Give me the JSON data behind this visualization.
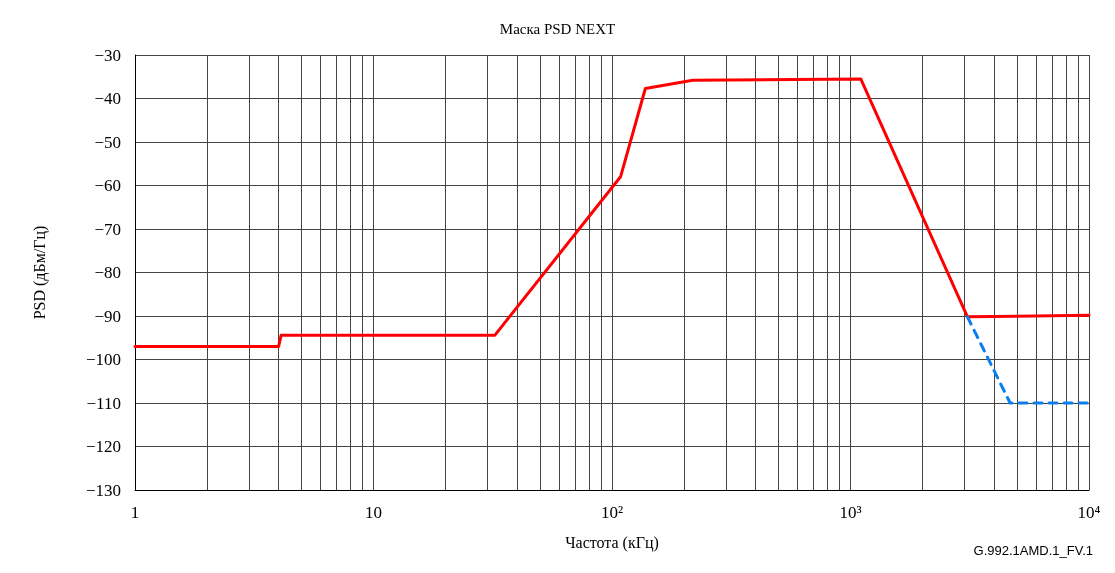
{
  "chart_data": {
    "type": "line",
    "title": "Маска PSD NEXT",
    "xlabel": "Частота (кГц)",
    "ylabel": "PSD (дБм/Гц)",
    "annotations": [
      "G.992.1AMD.1_FV.1"
    ],
    "log": "x",
    "grid": true,
    "marker": "none",
    "xlim": [
      1,
      10000
    ],
    "ylim": [
      -130,
      -30
    ],
    "xticks": [
      {
        "value": 1,
        "label": "1"
      },
      {
        "value": 2,
        "label": null
      },
      {
        "value": 3,
        "label": null
      },
      {
        "value": 4,
        "label": null
      },
      {
        "value": 5,
        "label": null
      },
      {
        "value": 6,
        "label": null
      },
      {
        "value": 7,
        "label": null
      },
      {
        "value": 8,
        "label": null
      },
      {
        "value": 9,
        "label": null
      },
      {
        "value": 10,
        "label": "10"
      },
      {
        "value": 20,
        "label": null
      },
      {
        "value": 30,
        "label": null
      },
      {
        "value": 40,
        "label": null
      },
      {
        "value": 50,
        "label": null
      },
      {
        "value": 60,
        "label": null
      },
      {
        "value": 70,
        "label": null
      },
      {
        "value": 80,
        "label": null
      },
      {
        "value": 90,
        "label": null
      },
      {
        "value": 100,
        "label": "10²"
      },
      {
        "value": 200,
        "label": null
      },
      {
        "value": 300,
        "label": null
      },
      {
        "value": 400,
        "label": null
      },
      {
        "value": 500,
        "label": null
      },
      {
        "value": 600,
        "label": null
      },
      {
        "value": 700,
        "label": null
      },
      {
        "value": 800,
        "label": null
      },
      {
        "value": 900,
        "label": null
      },
      {
        "value": 1000,
        "label": "10³"
      },
      {
        "value": 2000,
        "label": null
      },
      {
        "value": 3000,
        "label": null
      },
      {
        "value": 4000,
        "label": null
      },
      {
        "value": 5000,
        "label": null
      },
      {
        "value": 6000,
        "label": null
      },
      {
        "value": 7000,
        "label": null
      },
      {
        "value": 8000,
        "label": null
      },
      {
        "value": 9000,
        "label": null
      },
      {
        "value": 10000,
        "label": "10⁴"
      }
    ],
    "yticks": [
      {
        "value": -130,
        "label": "−130"
      },
      {
        "value": -120,
        "label": "−120"
      },
      {
        "value": -110,
        "label": "−110"
      },
      {
        "value": -100,
        "label": "−100"
      },
      {
        "value": -90,
        "label": "−90"
      },
      {
        "value": -80,
        "label": "−80"
      },
      {
        "value": -70,
        "label": "−70"
      },
      {
        "value": -60,
        "label": "−60"
      },
      {
        "value": -50,
        "label": "−50"
      },
      {
        "value": -40,
        "label": "−40"
      },
      {
        "value": -30,
        "label": "−30"
      }
    ],
    "series": [
      {
        "color": "#ff0000",
        "line_style": "solid",
        "x": [
          1,
          4,
          4.1,
          32.3,
          108.6,
          138,
          218,
          1104,
          3093,
          10000
        ],
        "values": [
          -97,
          -97,
          -94.4,
          -94.4,
          -58,
          -37.7,
          -35.8,
          -35.5,
          -90.2,
          -89.8
        ]
      },
      {
        "color": "#0a7ef0",
        "line_style": "dashed",
        "x": [
          3093,
          4670,
          10000
        ],
        "values": [
          -90.2,
          -110,
          -110
        ]
      }
    ]
  }
}
